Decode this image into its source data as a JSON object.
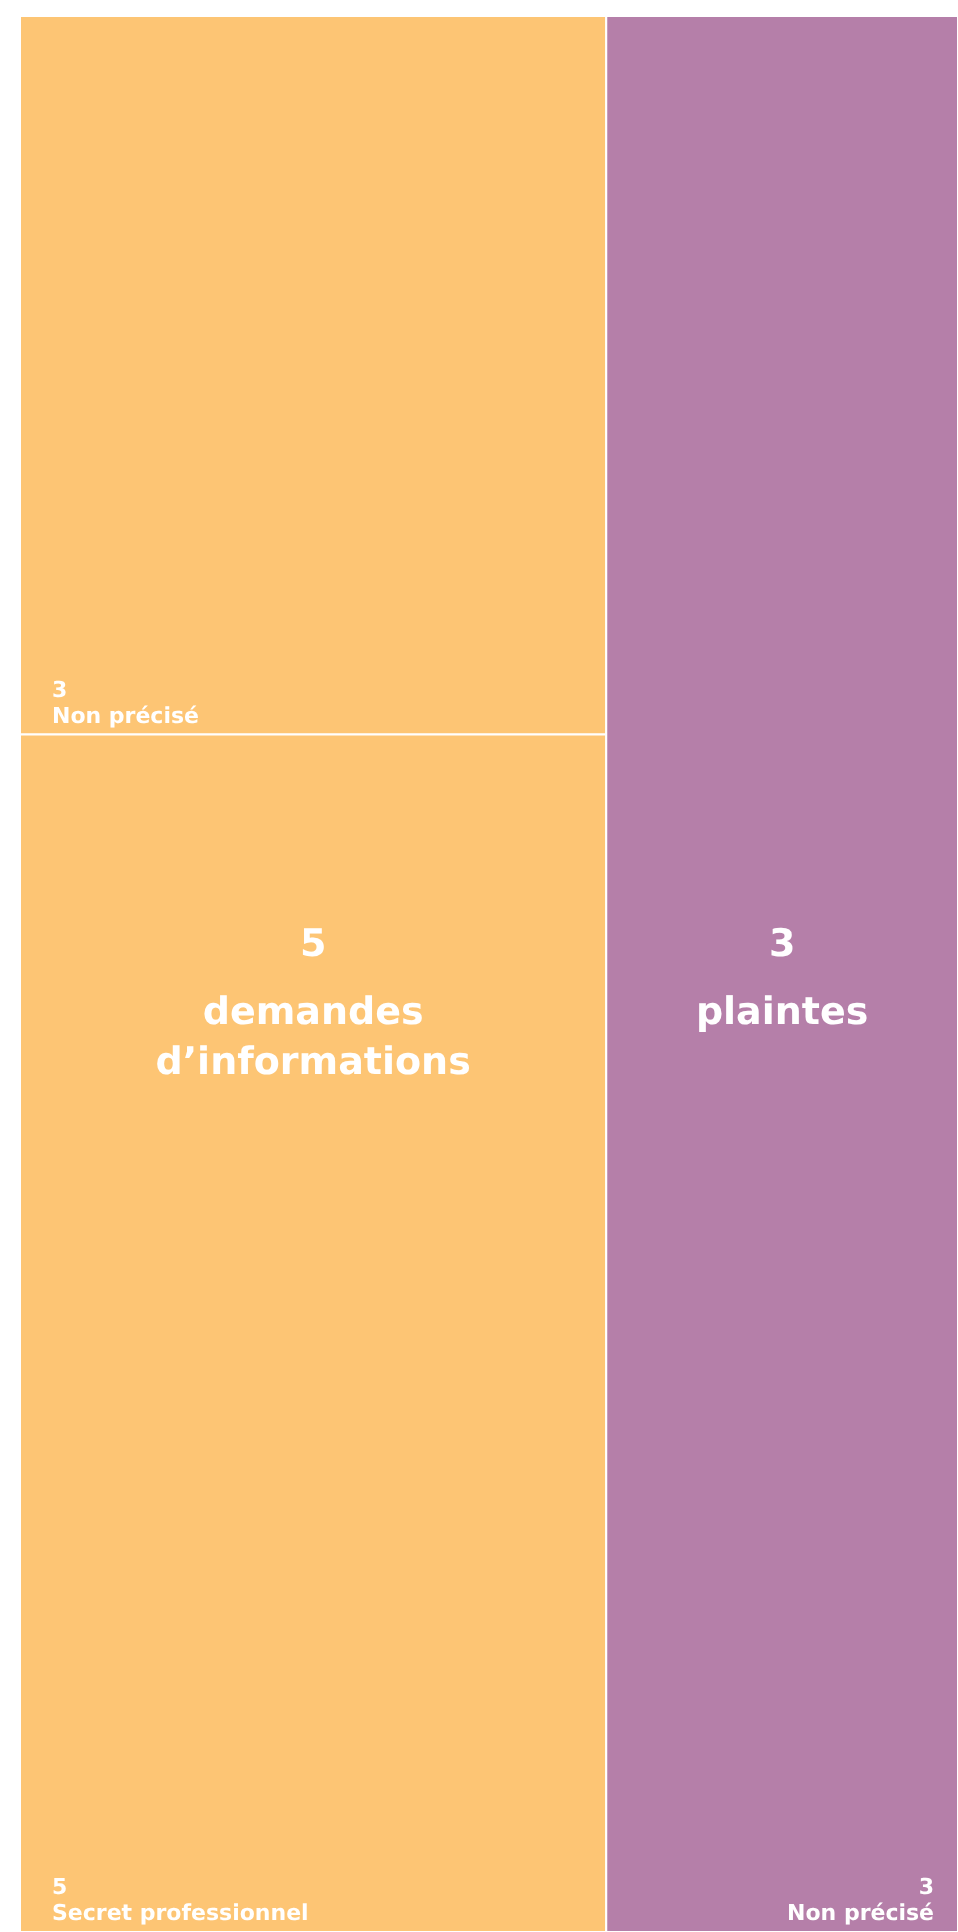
{
  "chart_data": {
    "type": "other",
    "categories": [
      "Non précisé",
      "Secret professionnel",
      "Non précisé"
    ],
    "series": [
      {
        "name": "demandes d’informations",
        "color": "#fdc574",
        "values": [
          3,
          5,
          null
        ]
      },
      {
        "name": "plaintes",
        "color": "#b57fa9",
        "values": [
          null,
          null,
          3
        ]
      }
    ],
    "totals": [
      "5",
      "3"
    ],
    "data_labels": true
  }
}
